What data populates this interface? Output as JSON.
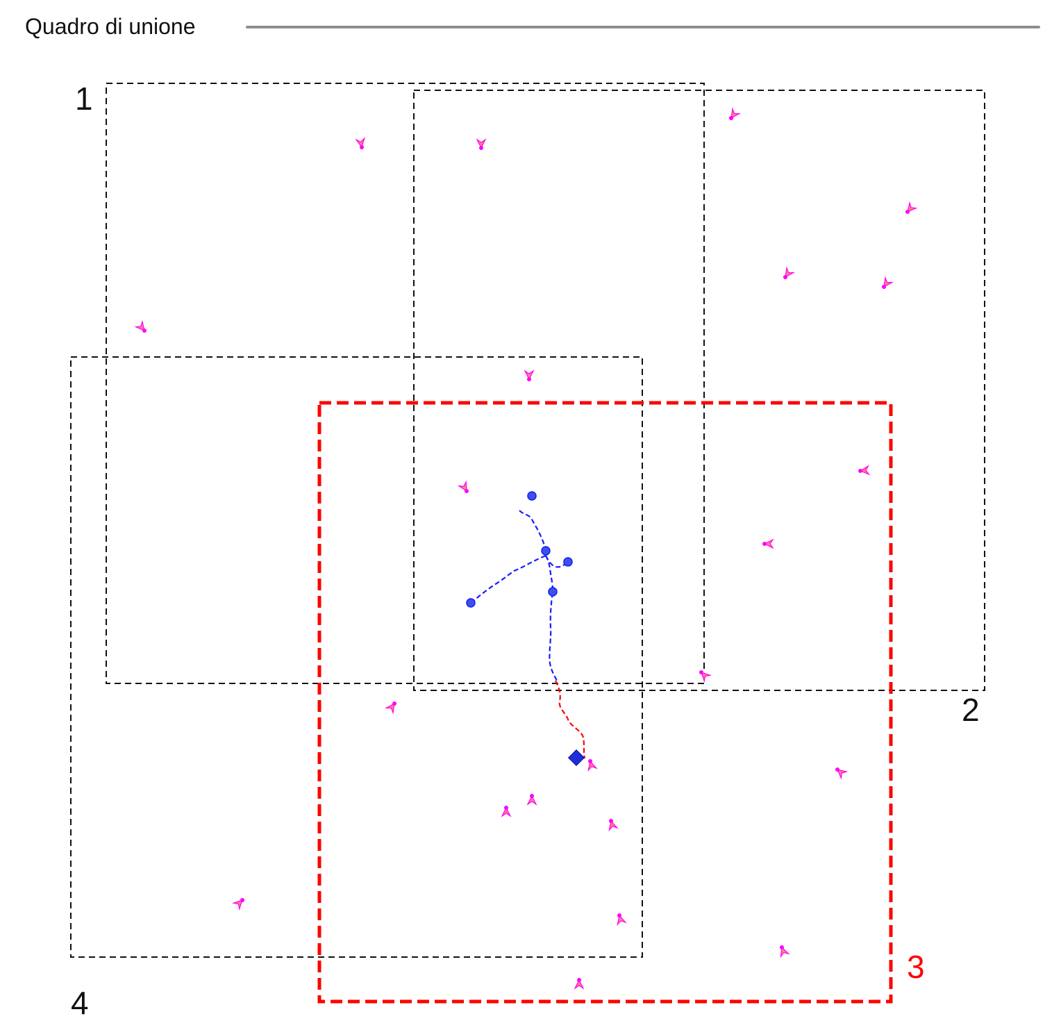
{
  "header": {
    "title": "Quadro di unione"
  },
  "sheets": [
    {
      "id": "1",
      "label": "1",
      "active": false
    },
    {
      "id": "2",
      "label": "2",
      "active": false
    },
    {
      "id": "3",
      "label": "3",
      "active": true
    },
    {
      "id": "4",
      "label": "4",
      "active": false
    }
  ],
  "colors": {
    "sheet_border": "#111111",
    "active_sheet": "#ff0000",
    "route_blue": "#1a1aff",
    "route_red": "#ff0000",
    "marker_fill": "#ff00ff",
    "marker_wedge": "#ff8080"
  },
  "icons": {
    "station_marker": "station-marker-icon",
    "route_node": "route-node-icon",
    "target_point": "target-diamond-icon"
  }
}
